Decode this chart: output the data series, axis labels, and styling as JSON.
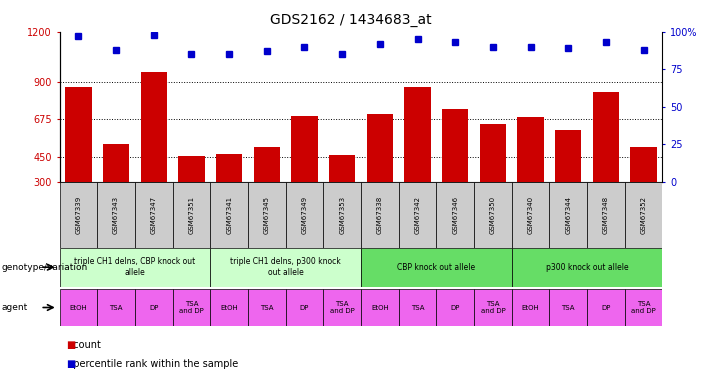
{
  "title": "GDS2162 / 1434683_at",
  "samples": [
    "GSM67339",
    "GSM67343",
    "GSM67347",
    "GSM67351",
    "GSM67341",
    "GSM67345",
    "GSM67349",
    "GSM67353",
    "GSM67338",
    "GSM67342",
    "GSM67346",
    "GSM67350",
    "GSM67340",
    "GSM67344",
    "GSM67348",
    "GSM67352"
  ],
  "bar_values": [
    870,
    530,
    960,
    455,
    465,
    510,
    695,
    460,
    710,
    870,
    740,
    650,
    690,
    610,
    840,
    510
  ],
  "dot_values": [
    97,
    88,
    98,
    85,
    85,
    87,
    90,
    85,
    92,
    95,
    93,
    90,
    90,
    89,
    93,
    88
  ],
  "bar_color": "#cc0000",
  "dot_color": "#0000cc",
  "ylim_left": [
    300,
    1200
  ],
  "ylim_right": [
    0,
    100
  ],
  "yticks_left": [
    300,
    450,
    675,
    900,
    1200
  ],
  "yticks_right": [
    0,
    25,
    50,
    75,
    100
  ],
  "yticklabels_right": [
    "0",
    "25",
    "50",
    "75",
    "100%"
  ],
  "grid_values": [
    450,
    675,
    900
  ],
  "genotype_groups": [
    {
      "label": "triple CH1 delns, CBP knock out\nallele",
      "start": 0,
      "end": 4,
      "color": "#ccffcc"
    },
    {
      "label": "triple CH1 delns, p300 knock\nout allele",
      "start": 4,
      "end": 8,
      "color": "#ccffcc"
    },
    {
      "label": "CBP knock out allele",
      "start": 8,
      "end": 12,
      "color": "#66dd66"
    },
    {
      "label": "p300 knock out allele",
      "start": 12,
      "end": 16,
      "color": "#66dd66"
    }
  ],
  "agent_labels": [
    "EtOH",
    "TSA",
    "DP",
    "TSA\nand DP",
    "EtOH",
    "TSA",
    "DP",
    "TSA\nand DP",
    "EtOH",
    "TSA",
    "DP",
    "TSA\nand DP",
    "EtOH",
    "TSA",
    "DP",
    "TSA\nand DP"
  ],
  "agent_colors": [
    "#ee66ee",
    "#ee66ee",
    "#ee66ee",
    "#ee66ee",
    "#ee66ee",
    "#ee66ee",
    "#ee66ee",
    "#ee66ee",
    "#ee66ee",
    "#ee66ee",
    "#ee66ee",
    "#ee66ee",
    "#ee66ee",
    "#ee66ee",
    "#ee66ee",
    "#ee66ee"
  ],
  "bg_color": "#ffffff",
  "tick_label_color_left": "#cc0000",
  "tick_label_color_right": "#0000cc",
  "sample_bg_color": "#cccccc"
}
